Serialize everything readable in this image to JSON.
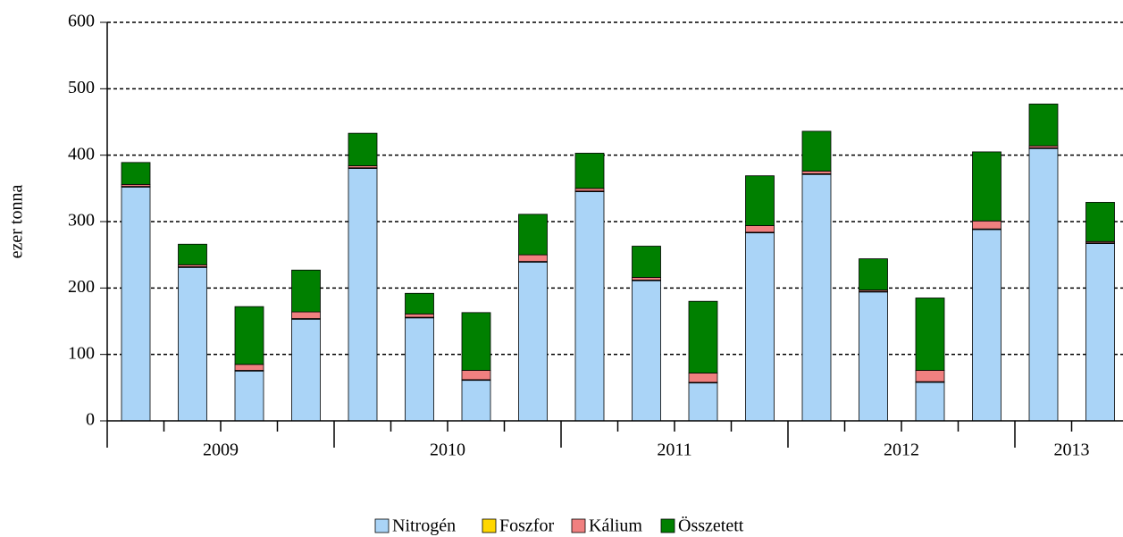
{
  "chart_data": {
    "type": "stacked_bar",
    "y_label": "ezer tonna",
    "categories": [
      null,
      null,
      null,
      null,
      null,
      null,
      null,
      null,
      null,
      null,
      null,
      null,
      null,
      null,
      null,
      null,
      null,
      null
    ],
    "groups": [
      "2009",
      "2010",
      "2011",
      "2012",
      "2013"
    ],
    "series": [
      {
        "name": "Nitrogén",
        "color": "#aad4f7",
        "values": [
          352,
          231,
          75,
          153,
          380,
          155,
          61,
          239,
          345,
          211,
          57,
          283,
          371,
          194,
          58,
          288,
          410,
          267
        ]
      },
      {
        "name": "Foszfor",
        "color": "#ffd700",
        "values": [
          1,
          1,
          1,
          1,
          1,
          1,
          1,
          1,
          1,
          1,
          1,
          1,
          1,
          1,
          1,
          1,
          1,
          1
        ]
      },
      {
        "name": "Kálium",
        "color": "#f08080",
        "values": [
          3,
          3,
          9,
          10,
          3,
          5,
          14,
          10,
          4,
          4,
          14,
          10,
          4,
          2,
          17,
          12,
          3,
          2
        ]
      },
      {
        "name": "Összetett",
        "color": "#008000",
        "values": [
          33,
          31,
          87,
          63,
          49,
          31,
          87,
          61,
          53,
          47,
          108,
          75,
          60,
          47,
          109,
          104,
          63,
          59
        ]
      }
    ],
    "ylim": [
      0,
      600
    ],
    "yticks": [
      0,
      100,
      200,
      300,
      400,
      500,
      600
    ],
    "grid": true,
    "legend": "bottom"
  }
}
